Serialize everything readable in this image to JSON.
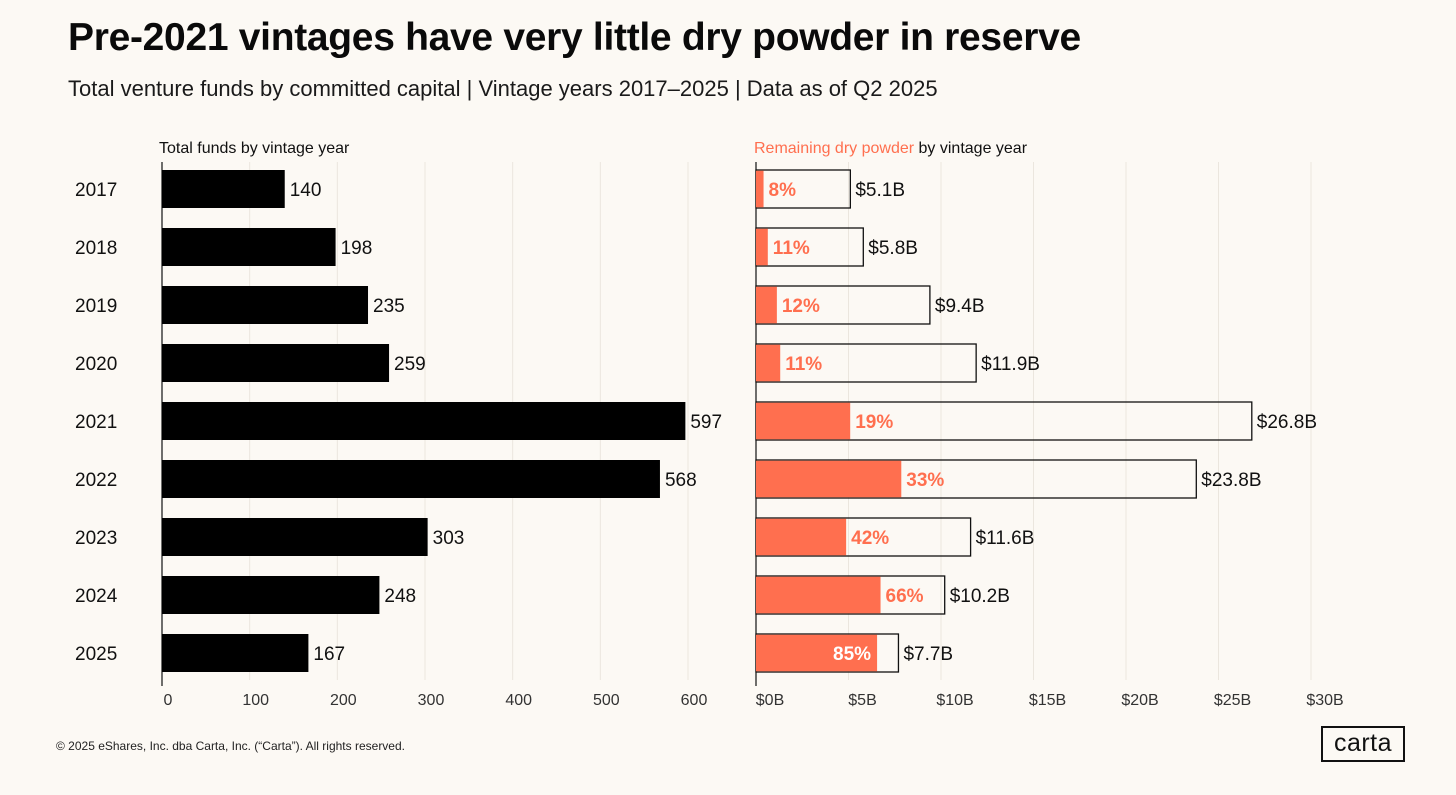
{
  "title": "Pre-2021 vintages have very little dry powder in reserve",
  "subtitle": "Total venture funds by committed capital | Vintage years 2017–2025 | Data as of Q2 2025",
  "footer": "© 2025 eShares, Inc. dba Carta, Inc. (“Carta”). All rights reserved.",
  "logo": "carta",
  "colors": {
    "bar_dark": "#000000",
    "accent": "#ff6f4f",
    "background": "#fcf9f4",
    "grid": "#ebe6de"
  },
  "chart_data": [
    {
      "type": "bar",
      "orientation": "horizontal",
      "title": "Total funds by vintage year",
      "categories": [
        "2017",
        "2018",
        "2019",
        "2020",
        "2021",
        "2022",
        "2023",
        "2024",
        "2025"
      ],
      "values": [
        140,
        198,
        235,
        259,
        597,
        568,
        303,
        248,
        167
      ],
      "value_labels": [
        "140",
        "198",
        "235",
        "259",
        "597",
        "568",
        "303",
        "248",
        "167"
      ],
      "xlim": [
        0,
        600
      ],
      "xticks": [
        0,
        100,
        200,
        300,
        400,
        500,
        600
      ],
      "xtick_labels": [
        "0",
        "100",
        "200",
        "300",
        "400",
        "500",
        "600"
      ],
      "grid": true
    },
    {
      "type": "bar",
      "orientation": "horizontal",
      "stacked": true,
      "title_highlight": "Remaining dry powder",
      "title_rest": " by vintage year",
      "categories": [
        "2017",
        "2018",
        "2019",
        "2020",
        "2021",
        "2022",
        "2023",
        "2024",
        "2025"
      ],
      "total_values": [
        5.1,
        5.8,
        9.4,
        11.9,
        26.8,
        23.8,
        11.6,
        10.2,
        7.7
      ],
      "total_labels": [
        "$5.1B",
        "$5.8B",
        "$9.4B",
        "$11.9B",
        "$26.8B",
        "$23.8B",
        "$11.6B",
        "$10.2B",
        "$7.7B"
      ],
      "dry_powder_pct": [
        8,
        11,
        12,
        11,
        19,
        33,
        42,
        66,
        85
      ],
      "pct_labels": [
        "8%",
        "11%",
        "12%",
        "11%",
        "19%",
        "33%",
        "42%",
        "66%",
        "85%"
      ],
      "xlim": [
        0,
        30
      ],
      "xticks": [
        0,
        5,
        10,
        15,
        20,
        25,
        30
      ],
      "xtick_labels": [
        "$0B",
        "$5B",
        "$10B",
        "$15B",
        "$20B",
        "$25B",
        "$30B"
      ],
      "grid": true
    }
  ]
}
